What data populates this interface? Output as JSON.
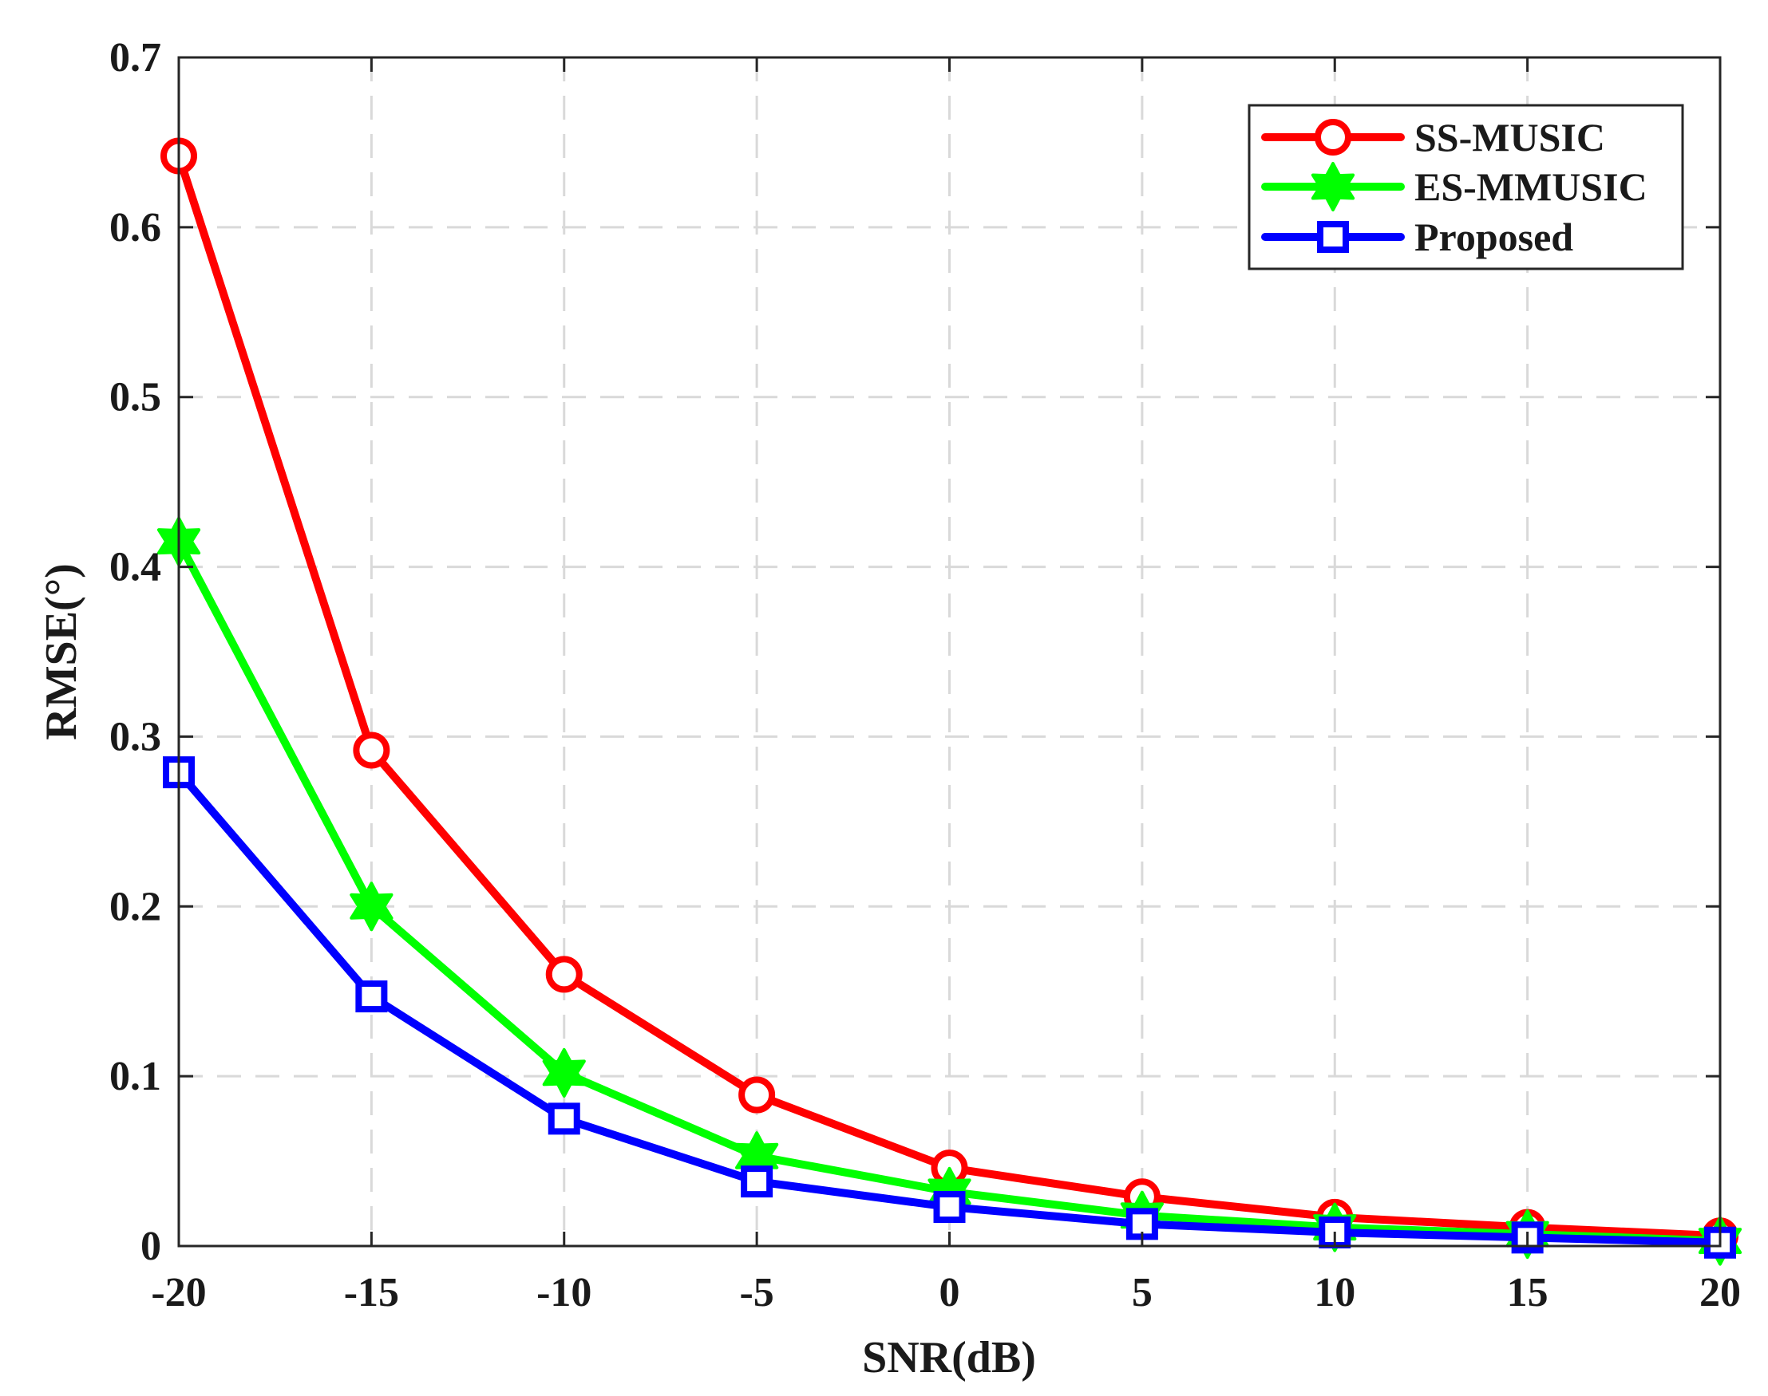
{
  "chart_data": {
    "type": "line",
    "title": "",
    "xlabel": "SNR(dB)",
    "ylabel": "RMSE(°)",
    "x": [
      -20,
      -15,
      -10,
      -5,
      0,
      5,
      10,
      15,
      20
    ],
    "xlim": [
      -20,
      20
    ],
    "ylim": [
      0,
      0.7
    ],
    "xticks": [
      -20,
      -15,
      -10,
      -5,
      0,
      5,
      10,
      15,
      20
    ],
    "xtick_labels": [
      "-20",
      "-15",
      "-10",
      "-5",
      "0",
      "5",
      "10",
      "15",
      "20"
    ],
    "yticks": [
      0,
      0.1,
      0.2,
      0.3,
      0.4,
      0.5,
      0.6,
      0.7
    ],
    "ytick_labels": [
      "0",
      "0.1",
      "0.2",
      "0.3",
      "0.4",
      "0.5",
      "0.6",
      "0.7"
    ],
    "grid": true,
    "legend_position": "top-right",
    "series": [
      {
        "name": "SS-MUSIC",
        "color": "#ff0000",
        "marker": "circle",
        "values": [
          0.642,
          0.292,
          0.16,
          0.089,
          0.046,
          0.029,
          0.017,
          0.011,
          0.006
        ]
      },
      {
        "name": "ES-MMUSIC",
        "color": "#00ff00",
        "marker": "hexagram",
        "values": [
          0.415,
          0.2,
          0.102,
          0.053,
          0.032,
          0.018,
          0.011,
          0.007,
          0.003
        ]
      },
      {
        "name": "Proposed",
        "color": "#0000ff",
        "marker": "square",
        "values": [
          0.279,
          0.147,
          0.075,
          0.038,
          0.023,
          0.013,
          0.008,
          0.005,
          0.002
        ]
      }
    ]
  }
}
